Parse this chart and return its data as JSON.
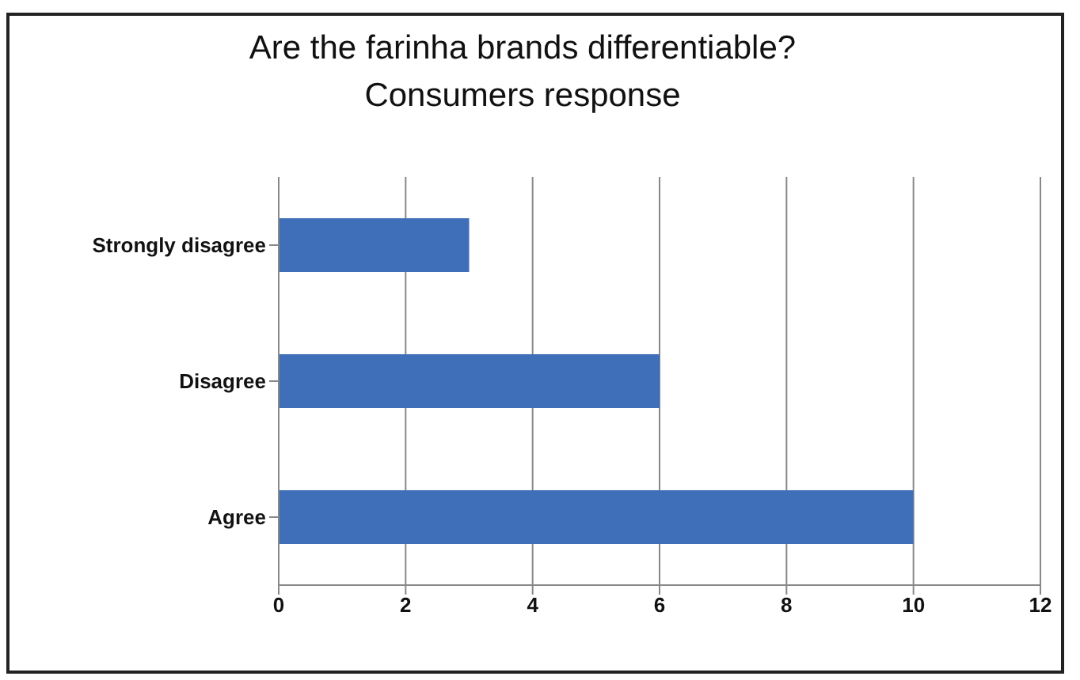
{
  "chart_data": {
    "type": "bar",
    "orientation": "horizontal",
    "title": "Are the farinha brands differentiable?",
    "subtitle": "Consumers response",
    "categories": [
      "Strongly disagree",
      "Disagree",
      "Agree"
    ],
    "values": [
      3,
      6,
      10
    ],
    "color": "#3f6fb8",
    "xlim": [
      0,
      12
    ],
    "xticks": [
      0,
      2,
      4,
      6,
      8,
      10,
      12
    ],
    "grid": "x"
  }
}
